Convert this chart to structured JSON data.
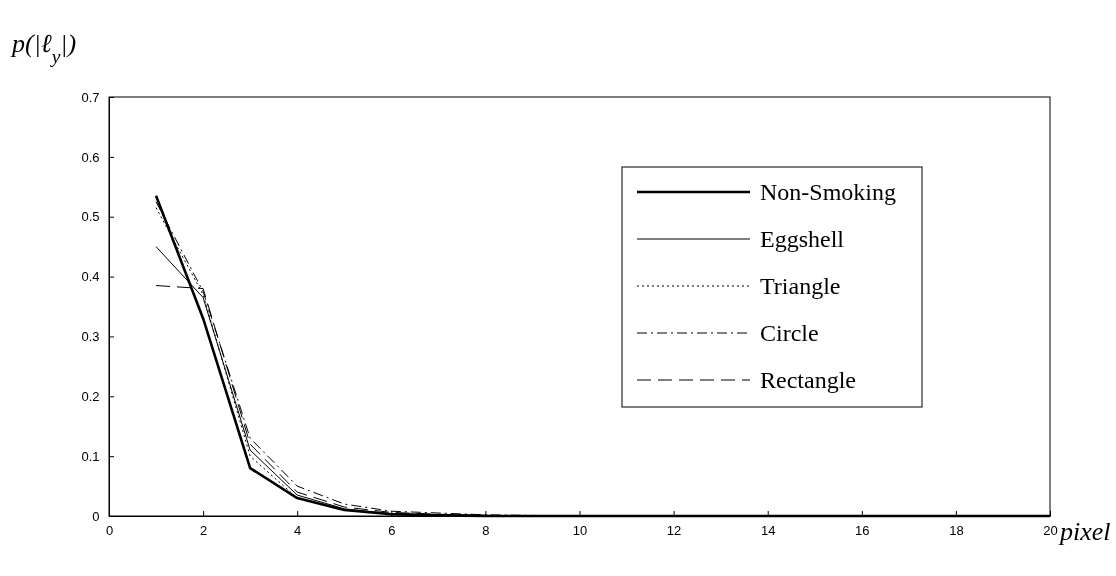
{
  "chart_data": {
    "type": "line",
    "ylabel": "p(|ℓ$_{y}$|)",
    "xlabel": "pixel",
    "x": [
      1,
      2,
      3,
      4,
      5,
      6,
      7,
      8,
      9,
      10,
      11,
      12,
      13,
      14,
      15,
      16,
      17,
      18,
      19,
      20
    ],
    "xlim": [
      0,
      20
    ],
    "xticks": [
      0,
      2,
      4,
      6,
      8,
      10,
      12,
      14,
      16,
      18,
      20
    ],
    "ylim": [
      0,
      0.7
    ],
    "yticks": [
      0,
      0.1,
      0.2,
      0.3,
      0.4,
      0.5,
      0.6,
      0.7
    ],
    "legend": "right",
    "grid": false,
    "marker": "none",
    "series": [
      {
        "name": "Non-Smoking",
        "color": "#000000",
        "line_style": "solid",
        "values": [
          0.535,
          0.33,
          0.08,
          0.03,
          0.01,
          0.003,
          0.001,
          0,
          0,
          0,
          0,
          0,
          0,
          0,
          0,
          0,
          0,
          0,
          0,
          0
        ]
      },
      {
        "name": "Eggshell",
        "color": "#000000",
        "line_style": "solid",
        "values": [
          0.45,
          0.365,
          0.11,
          0.035,
          0.012,
          0.004,
          0.002,
          0.001,
          0,
          0,
          0,
          0,
          0,
          0,
          0,
          0,
          0,
          0,
          0,
          0
        ]
      },
      {
        "name": "Triangle",
        "color": "#000000",
        "line_style": "dotted",
        "values": [
          0.515,
          0.37,
          0.1,
          0.03,
          0.01,
          0.004,
          0.002,
          0.001,
          0,
          0,
          0,
          0,
          0,
          0,
          0,
          0,
          0,
          0,
          0,
          0
        ]
      },
      {
        "name": "Circle",
        "color": "#000000",
        "line_style": "dashdot",
        "values": [
          0.525,
          0.375,
          0.13,
          0.05,
          0.02,
          0.008,
          0.005,
          0.002,
          0.001,
          0,
          0,
          0,
          0,
          0,
          0,
          0,
          0,
          0,
          0,
          0
        ]
      },
      {
        "name": "Rectangle",
        "color": "#000000",
        "line_style": "dashed",
        "values": [
          0.385,
          0.38,
          0.12,
          0.04,
          0.015,
          0.006,
          0.003,
          0.001,
          0,
          0,
          0,
          0,
          0,
          0,
          0,
          0,
          0,
          0,
          0,
          0
        ]
      }
    ]
  }
}
